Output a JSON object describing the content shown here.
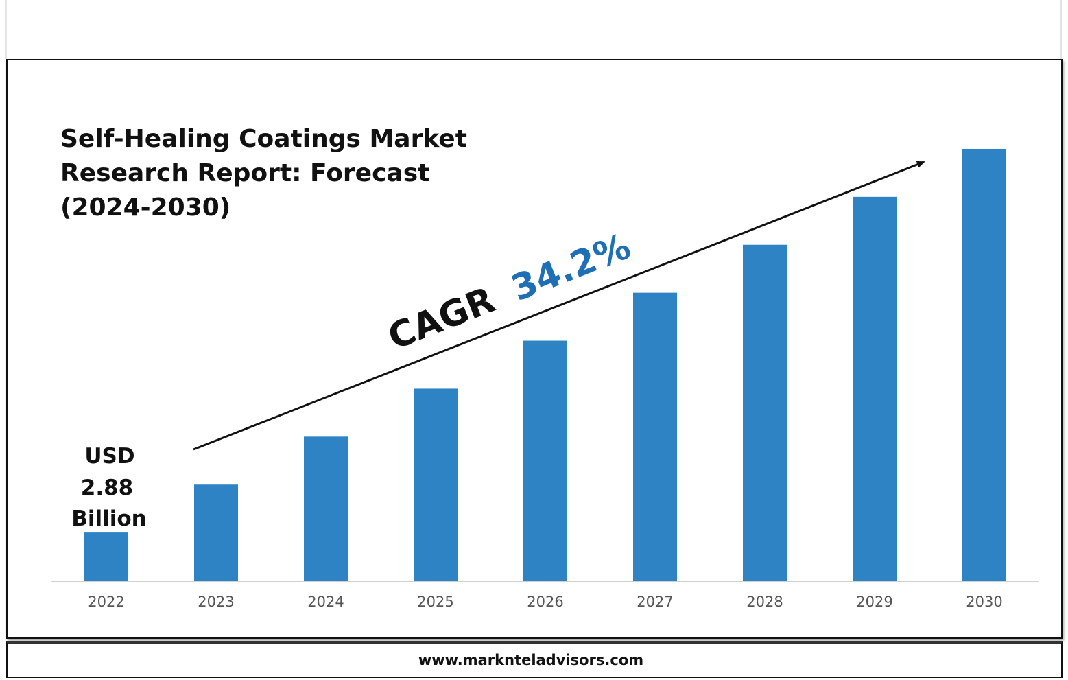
{
  "chart_data": {
    "type": "bar",
    "title_lines": [
      "Self-Healing Coatings Market",
      "Research Report: Forecast",
      "(2024-2030)"
    ],
    "categories": [
      "2022",
      "2023",
      "2024",
      "2025",
      "2026",
      "2027",
      "2028",
      "2029",
      "2030"
    ],
    "values": [
      1,
      2,
      3,
      4,
      5,
      6,
      7,
      8,
      9
    ],
    "ylim": [
      0,
      9.5
    ],
    "first_bar_label_lines": [
      "USD",
      "2.88",
      "Billion"
    ],
    "cagr_label": "CAGR",
    "cagr_value": "34.2%",
    "bar_color": "#2e83c4",
    "cagr_value_color": "#1f6fb7",
    "grid": false,
    "legend": "none"
  },
  "footer": {
    "url": "www.marknteladvisors.com"
  }
}
